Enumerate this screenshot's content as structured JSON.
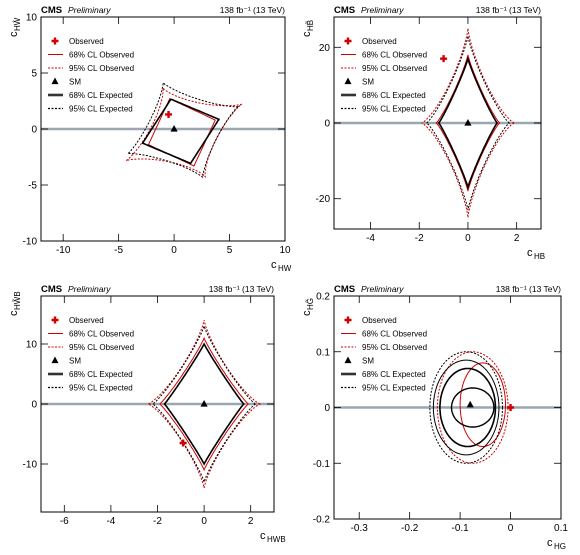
{
  "chart_data": [
    {
      "type": "line",
      "cms_label": "CMS",
      "prelim_label": "Preliminary",
      "lumi_label": "138 fb⁻¹ (13 TeV)",
      "xlabel": "c",
      "xlabel_sub": "HW",
      "ylabel": "c",
      "ylabel_sub": "HŴ",
      "xlim": [
        -12,
        10
      ],
      "ylim": [
        -10,
        10
      ],
      "xticks": [
        -10,
        -5,
        0,
        5,
        10
      ],
      "yticks": [
        -10,
        -5,
        0,
        5,
        10
      ],
      "legend": {
        "position": "top-left",
        "entries": [
          "Observed",
          "68% CL Observed",
          "95% CL Observed",
          "SM",
          "68% CL Expected",
          "95% CL Expected"
        ]
      },
      "observed_point": [
        -0.5,
        1.3
      ],
      "sm_point": [
        0,
        0
      ],
      "hline": 0
    },
    {
      "type": "line",
      "cms_label": "CMS",
      "prelim_label": "Preliminary",
      "lumi_label": "138 fb⁻¹ (13 TeV)",
      "xlabel": "c",
      "xlabel_sub": "HB",
      "ylabel": "c",
      "ylabel_sub": "HB̃",
      "xlim": [
        -5.5,
        3
      ],
      "ylim": [
        -28,
        28
      ],
      "xticks": [
        -4,
        -2,
        0,
        2
      ],
      "yticks": [
        -20,
        0,
        20
      ],
      "legend": {
        "position": "top-left",
        "entries": [
          "Observed",
          "68% CL Observed",
          "95% CL Observed",
          "SM",
          "68% CL Expected",
          "95% CL Expected"
        ]
      },
      "observed_point": [
        -1.0,
        17
      ],
      "sm_point": [
        0,
        0
      ],
      "hline": 0
    },
    {
      "type": "line",
      "cms_label": "CMS",
      "prelim_label": "Preliminary",
      "lumi_label": "138 fb⁻¹ (13 TeV)",
      "xlabel": "c",
      "xlabel_sub": "HWB",
      "ylabel": "c",
      "ylabel_sub": "HW̃B",
      "xlim": [
        -7,
        3
      ],
      "ylim": [
        -18,
        18
      ],
      "xticks": [
        -6,
        -4,
        -2,
        0,
        2
      ],
      "yticks": [
        -10,
        0,
        10
      ],
      "legend": {
        "position": "top-left",
        "entries": [
          "Observed",
          "68% CL Observed",
          "95% CL Observed",
          "SM",
          "68% CL Expected",
          "95% CL Expected"
        ]
      },
      "observed_point": [
        -0.9,
        -6.5
      ],
      "sm_point": [
        0,
        0
      ],
      "hline": 0
    },
    {
      "type": "line",
      "cms_label": "CMS",
      "prelim_label": "Preliminary",
      "lumi_label": "138 fb⁻¹ (13 TeV)",
      "xlabel": "c",
      "xlabel_sub": "HG",
      "ylabel": "c",
      "ylabel_sub": "HG̃",
      "xlim": [
        -0.35,
        0.1
      ],
      "ylim": [
        -0.2,
        0.2
      ],
      "xticks": [
        -0.3,
        -0.2,
        -0.1,
        0,
        0.1
      ],
      "yticks": [
        -0.2,
        -0.1,
        0,
        0.1,
        0.2
      ],
      "legend": {
        "position": "top-left",
        "entries": [
          "Observed",
          "68% CL Observed",
          "95% CL Observed",
          "SM",
          "68% CL Expected",
          "95% CL Expected"
        ]
      },
      "observed_point": [
        0,
        0
      ],
      "sm_point": [
        -0.08,
        0.005
      ],
      "hline": 0
    }
  ]
}
